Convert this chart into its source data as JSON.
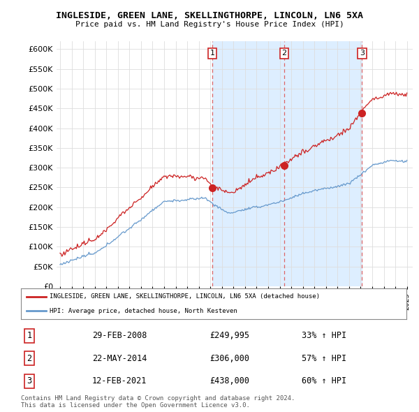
{
  "title": "INGLESIDE, GREEN LANE, SKELLINGTHORPE, LINCOLN, LN6 5XA",
  "subtitle": "Price paid vs. HM Land Registry's House Price Index (HPI)",
  "ylim": [
    0,
    620000
  ],
  "yticks": [
    0,
    50000,
    100000,
    150000,
    200000,
    250000,
    300000,
    350000,
    400000,
    450000,
    500000,
    550000,
    600000
  ],
  "xlim_start": 1994.7,
  "xlim_end": 2025.5,
  "sale_dates": [
    2008.16,
    2014.39,
    2021.12
  ],
  "sale_prices": [
    249995,
    306000,
    438000
  ],
  "sale_labels": [
    "1",
    "2",
    "3"
  ],
  "red_line_color": "#cc2222",
  "blue_line_color": "#6699cc",
  "dashed_line_color": "#dd6666",
  "shade_color": "#ddeeff",
  "legend_red_label": "INGLESIDE, GREEN LANE, SKELLINGTHORPE, LINCOLN, LN6 5XA (detached house)",
  "legend_blue_label": "HPI: Average price, detached house, North Kesteven",
  "table_rows": [
    {
      "num": "1",
      "date": "29-FEB-2008",
      "price": "£249,995",
      "change": "33% ↑ HPI"
    },
    {
      "num": "2",
      "date": "22-MAY-2014",
      "price": "£306,000",
      "change": "57% ↑ HPI"
    },
    {
      "num": "3",
      "date": "12-FEB-2021",
      "price": "£438,000",
      "change": "60% ↑ HPI"
    }
  ],
  "footnote1": "Contains HM Land Registry data © Crown copyright and database right 2024.",
  "footnote2": "This data is licensed under the Open Government Licence v3.0.",
  "background_color": "#ffffff",
  "plot_bg_color": "#ffffff",
  "grid_color": "#dddddd"
}
